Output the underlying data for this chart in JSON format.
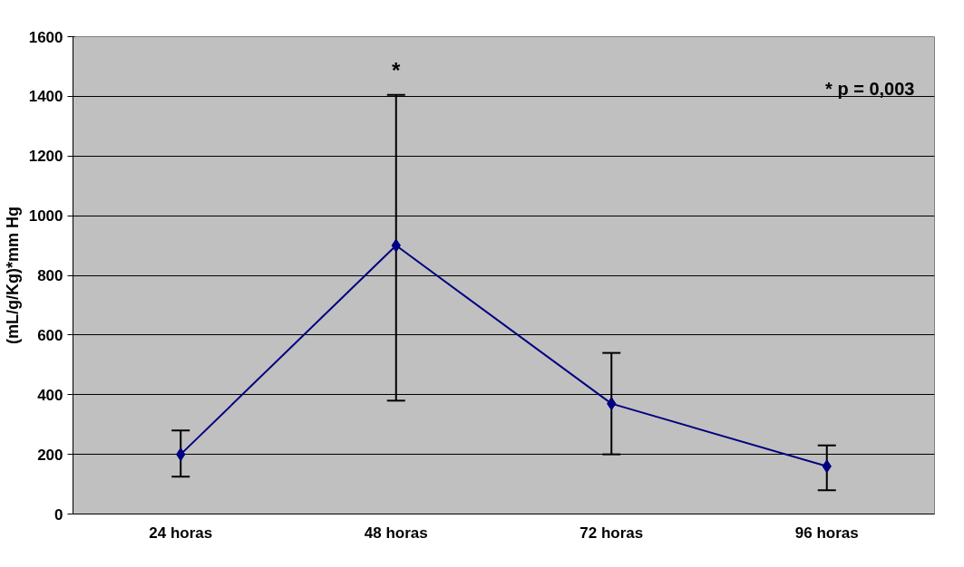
{
  "chart_data": {
    "type": "line",
    "ylabel": "(mL/g/Kg)*mm Hg",
    "categories": [
      "24 horas",
      "48 horas",
      "72 horas",
      "96 horas"
    ],
    "series": [
      {
        "color": "#000080",
        "values": [
          200,
          900,
          370,
          160
        ],
        "errors": [
          [
            125,
            280
          ],
          [
            380,
            1405
          ],
          [
            200,
            540
          ],
          [
            80,
            230
          ]
        ]
      }
    ],
    "ylim": [
      0,
      1600
    ],
    "yticks": [
      0,
      200,
      400,
      600,
      800,
      1000,
      1200,
      1400,
      1600
    ],
    "grid": "y",
    "marker": "diamond",
    "line_style": "solid",
    "annotations": [
      "*",
      "* p = 0,003"
    ]
  }
}
